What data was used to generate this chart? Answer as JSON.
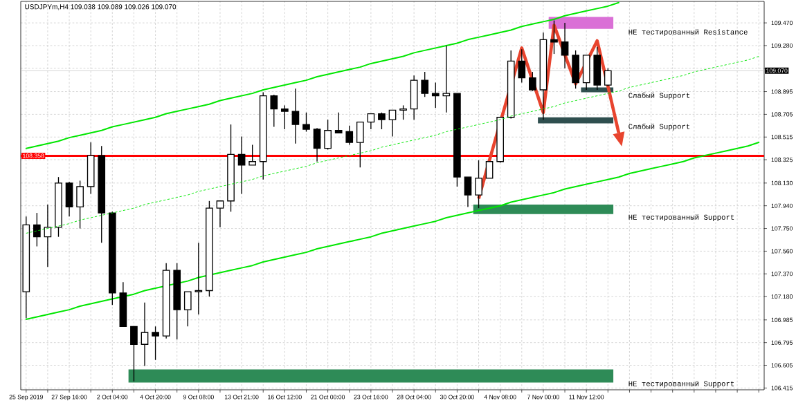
{
  "chart_data": {
    "type": "candlestick",
    "title": "USDJPYm,H4 109.038 109.089 109.026 109.070",
    "color": "#000000",
    "ylim": [
      106.4,
      109.65
    ],
    "grid": true,
    "yticks": [
      106.415,
      106.605,
      106.795,
      106.985,
      {
        "value": 107.18,
        "label": "107.180"
      },
      {
        "value": 107.37,
        "label": "107.370"
      },
      {
        "value": 107.56,
        "label": "107.560"
      },
      {
        "value": 107.75,
        "label": "107.750"
      },
      {
        "value": 107.94,
        "label": "107.940"
      },
      {
        "value": 108.13,
        "label": "108.130"
      },
      108.325,
      108.515,
      108.705,
      108.895,
      {
        "value": 109.09,
        "label": null
      },
      {
        "value": 109.28,
        "label": "109.280"
      },
      {
        "value": 109.47,
        "label": "109.470"
      }
    ],
    "categories": [
      "25 Sep 2019",
      null,
      null,
      null,
      "27 Sep 16:00",
      null,
      null,
      null,
      "2 Oct 04:00",
      null,
      null,
      null,
      "4 Oct 20:00",
      null,
      null,
      null,
      "9 Oct 08:00",
      null,
      null,
      null,
      "13 Oct 21:00",
      null,
      null,
      null,
      "16 Oct 12:00",
      null,
      null,
      null,
      "21 Oct 00:00",
      null,
      null,
      null,
      "23 Oct 16:00",
      null,
      null,
      null,
      "28 Oct 04:00",
      null,
      null,
      null,
      "30 Oct 20:00",
      null,
      null,
      null,
      "4 Nov 08:00",
      null,
      null,
      null,
      "7 Nov 00:00",
      null,
      null,
      null,
      "11 Nov 12:00",
      null,
      null,
      null,
      null,
      null,
      null,
      null,
      null,
      null,
      null,
      null,
      null,
      null,
      null,
      null,
      null
    ],
    "ohlc": [
      [
        107.22,
        107.85,
        107.0,
        107.78
      ],
      [
        107.78,
        107.88,
        107.6,
        107.68
      ],
      [
        107.68,
        107.95,
        107.43,
        107.76
      ],
      [
        107.76,
        108.18,
        107.68,
        108.13
      ],
      [
        108.13,
        108.14,
        107.85,
        107.93
      ],
      [
        107.93,
        108.15,
        107.75,
        108.1
      ],
      [
        108.1,
        108.47,
        108.04,
        108.36
      ],
      [
        108.36,
        108.44,
        107.63,
        107.88
      ],
      [
        107.88,
        107.89,
        107.11,
        107.21
      ],
      [
        107.21,
        107.3,
        106.93,
        106.93
      ],
      [
        106.93,
        106.93,
        106.47,
        106.78
      ],
      [
        106.78,
        107.13,
        106.6,
        106.88
      ],
      [
        106.88,
        106.93,
        106.65,
        106.85
      ],
      [
        106.85,
        107.46,
        106.83,
        107.4
      ],
      [
        107.4,
        107.46,
        106.82,
        107.07
      ],
      [
        107.07,
        107.22,
        106.93,
        107.22
      ],
      [
        107.22,
        107.63,
        107.03,
        107.23
      ],
      [
        107.23,
        107.98,
        107.18,
        107.92
      ],
      [
        107.92,
        107.98,
        107.76,
        107.98
      ],
      [
        107.98,
        108.62,
        107.89,
        108.37
      ],
      [
        108.37,
        108.52,
        108.04,
        108.28
      ],
      [
        108.28,
        108.45,
        108.28,
        108.31
      ],
      [
        108.31,
        108.89,
        108.16,
        108.86
      ],
      [
        108.86,
        108.87,
        108.6,
        108.75
      ],
      [
        108.75,
        108.78,
        108.58,
        108.73
      ],
      [
        108.73,
        108.92,
        108.46,
        108.62
      ],
      [
        108.62,
        108.72,
        108.56,
        108.58
      ],
      [
        108.58,
        108.59,
        108.31,
        108.42
      ],
      [
        108.42,
        108.66,
        108.41,
        108.57
      ],
      [
        108.57,
        108.72,
        108.55,
        108.55
      ],
      [
        108.56,
        108.61,
        108.45,
        108.47
      ],
      [
        108.47,
        108.64,
        108.26,
        108.64
      ],
      [
        108.64,
        108.71,
        108.58,
        108.71
      ],
      [
        108.71,
        108.72,
        108.58,
        108.66
      ],
      [
        108.66,
        108.74,
        108.52,
        108.74
      ],
      [
        108.74,
        108.78,
        108.66,
        108.75
      ],
      [
        108.75,
        109.03,
        108.66,
        108.99
      ],
      [
        108.99,
        109.06,
        108.85,
        108.88
      ],
      [
        108.88,
        108.97,
        108.76,
        108.86
      ],
      [
        108.86,
        109.28,
        108.72,
        108.88
      ],
      [
        108.88,
        108.88,
        108.1,
        108.18
      ],
      [
        108.18,
        108.18,
        107.93,
        108.03
      ],
      [
        108.03,
        108.32,
        107.92,
        108.17
      ],
      [
        108.17,
        108.31,
        108.17,
        108.31
      ],
      [
        108.31,
        108.68,
        108.3,
        108.68
      ],
      [
        108.68,
        109.24,
        108.67,
        109.15
      ],
      [
        109.15,
        109.25,
        108.97,
        109.01
      ],
      [
        109.01,
        109.06,
        108.9,
        108.91
      ],
      [
        108.91,
        109.39,
        108.66,
        109.33
      ],
      [
        109.33,
        109.49,
        109.21,
        109.31
      ],
      [
        109.31,
        109.47,
        109.09,
        109.2
      ],
      [
        109.2,
        109.24,
        108.92,
        108.97
      ],
      [
        108.97,
        109.2,
        108.91,
        109.2
      ],
      [
        109.2,
        109.27,
        108.91,
        108.95
      ],
      [
        108.95,
        109.09,
        108.94,
        109.07
      ],
      null,
      null,
      null,
      null,
      null,
      null,
      null,
      null,
      null,
      null,
      null,
      null,
      null,
      null
    ],
    "series": [
      {
        "type": "line",
        "color": "#00e600",
        "values": [
          108.42,
          108.44,
          108.46,
          108.48,
          108.51,
          108.53,
          108.55,
          108.57,
          108.6,
          108.62,
          108.64,
          108.66,
          108.68,
          108.71,
          108.73,
          108.75,
          108.77,
          108.79,
          108.82,
          108.84,
          108.86,
          108.88,
          108.91,
          108.93,
          108.95,
          108.97,
          108.99,
          109.02,
          109.04,
          109.06,
          109.08,
          109.1,
          109.13,
          109.15,
          109.17,
          109.19,
          109.22,
          109.24,
          109.26,
          109.28,
          109.3,
          109.33,
          109.35,
          109.37,
          109.39,
          109.41,
          109.44,
          109.46,
          109.48,
          109.5,
          109.53,
          109.55,
          109.57,
          109.59,
          109.61,
          109.64,
          null,
          null,
          null,
          null,
          null,
          null,
          null,
          null,
          null,
          null,
          null,
          null,
          null
        ]
      },
      {
        "type": "line",
        "color": "#00e600",
        "values": [
          106.99,
          107.01,
          107.03,
          107.05,
          107.07,
          107.1,
          107.12,
          107.14,
          107.16,
          null,
          107.2,
          107.23,
          107.25,
          null,
          null,
          107.31,
          107.34,
          null,
          107.38,
          107.4,
          107.42,
          107.44,
          107.47,
          107.49,
          107.51,
          107.53,
          107.55,
          107.58,
          107.6,
          107.62,
          107.64,
          107.66,
          107.68,
          107.71,
          107.73,
          107.75,
          107.77,
          107.79,
          107.81,
          107.84,
          107.86,
          107.88,
          107.9,
          107.92,
          107.94,
          107.97,
          107.99,
          108.01,
          108.03,
          108.05,
          108.08,
          108.1,
          108.12,
          108.14,
          108.16,
          108.18,
          108.21,
          108.23,
          108.25,
          108.27,
          108.29,
          108.31,
          108.34,
          108.36,
          108.38,
          108.4,
          108.42,
          108.44,
          108.47
        ]
      },
      {
        "type": "line",
        "color": "#00e600",
        "line_style": "dashed",
        "values": [
          107.71,
          107.73,
          107.75,
          107.77,
          107.79,
          107.82,
          107.84,
          107.86,
          107.88,
          107.9,
          107.92,
          107.95,
          107.97,
          107.99,
          108.01,
          108.03,
          108.06,
          108.08,
          108.1,
          108.12,
          108.14,
          108.16,
          108.19,
          108.21,
          108.23,
          108.25,
          108.27,
          108.3,
          108.32,
          108.34,
          108.36,
          108.38,
          108.4,
          108.43,
          108.45,
          108.47,
          108.49,
          108.51,
          108.53,
          108.56,
          108.58,
          108.6,
          108.62,
          108.64,
          108.66,
          108.69,
          108.71,
          108.73,
          108.75,
          108.77,
          108.8,
          108.82,
          108.84,
          108.86,
          108.88,
          108.9,
          108.93,
          108.95,
          108.97,
          108.99,
          109.01,
          109.03,
          109.06,
          109.08,
          109.1,
          109.12,
          109.14,
          109.16,
          109.19
        ]
      },
      {
        "type": "line",
        "color": "#e8442e",
        "values": [
          null,
          null,
          null,
          null,
          null,
          null,
          null,
          null,
          null,
          null,
          null,
          null,
          null,
          null,
          null,
          null,
          null,
          null,
          null,
          null,
          null,
          null,
          null,
          null,
          null,
          null,
          null,
          null,
          null,
          null,
          null,
          null,
          null,
          null,
          null,
          null,
          null,
          null,
          null,
          null,
          null,
          null,
          108.0,
          108.32,
          null,
          null,
          109.26,
          null,
          108.72,
          109.45,
          null,
          108.96,
          null,
          109.32,
          108.94,
          108.55,
          null,
          null,
          null,
          null,
          null,
          null,
          null,
          null,
          null,
          null,
          null,
          null,
          null
        ]
      }
    ],
    "bands": [
      {
        "axis": "y",
        "from": 109.42,
        "to": 109.52,
        "label": "НЕ тестированный Resistance",
        "color": "#da70d6"
      },
      {
        "axis": "y",
        "from": 108.89,
        "to": 108.93,
        "label": "Слабый Support",
        "color": "#2f4f4f"
      },
      {
        "axis": "y",
        "from": 108.63,
        "to": 108.68,
        "label": "Слабый Support",
        "color": "#2f4f4f"
      },
      {
        "axis": "y",
        "from": 107.87,
        "to": 107.95,
        "label": "НЕ тестированный Support",
        "color": "#2e8b57"
      },
      {
        "axis": "y",
        "from": 106.46,
        "to": 106.57,
        "label": "НЕ тестированный Support",
        "color": "#2e8b57"
      }
    ],
    "ref_lines": [
      {
        "axis": "y",
        "value": 108.358,
        "label": "108.358",
        "color": "#ff0000"
      },
      {
        "axis": "y",
        "value": 109.07,
        "label": "109.070",
        "color": "#c0c0c0"
      }
    ]
  }
}
